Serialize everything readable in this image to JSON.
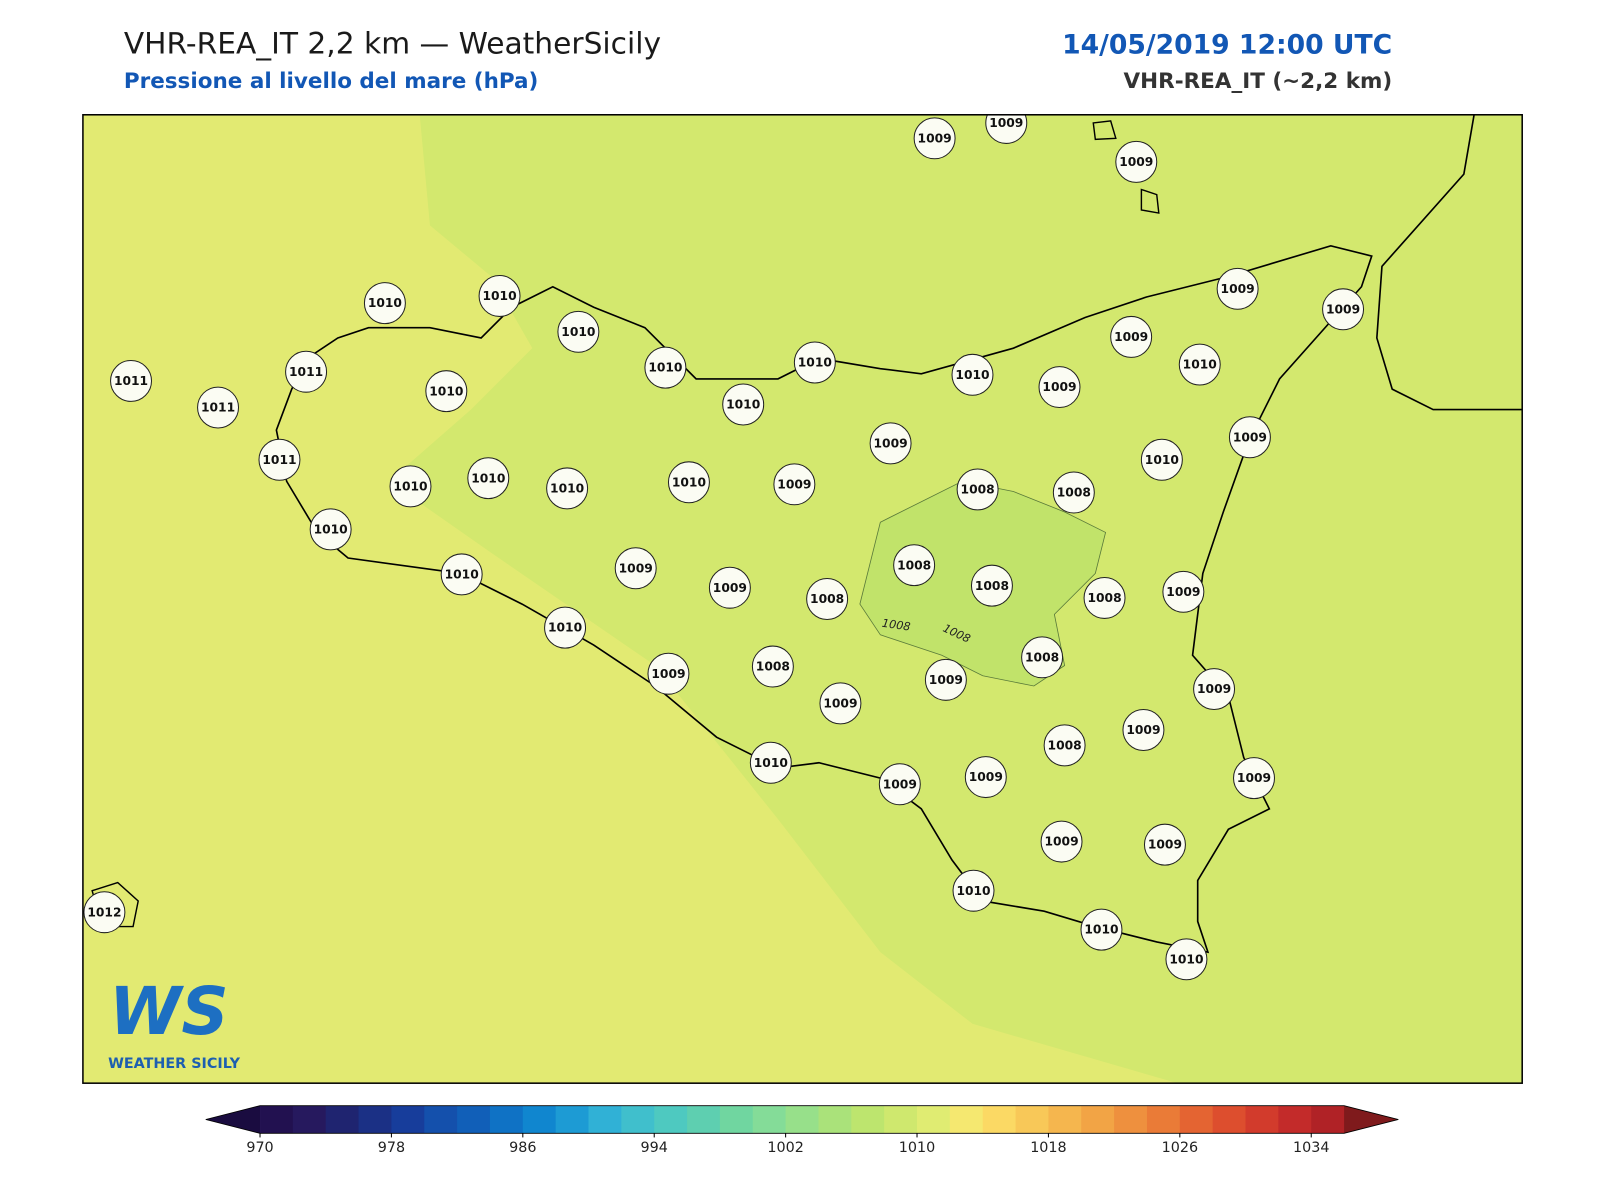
{
  "header": {
    "title": "VHR-REA_IT 2,2 km — WeatherSicily",
    "subtitle": "Pressione al livello del mare (hPa)",
    "datetime": "14/05/2019 12:00 UTC",
    "model": "VHR-REA_IT (~2,2 km)"
  },
  "stations": [
    1009,
    1009,
    1009,
    1010,
    1010,
    1010,
    1010,
    1010,
    1010,
    1009,
    1009,
    1009,
    1010,
    1010,
    1009,
    1011,
    1011,
    1011,
    1010,
    1011,
    1009,
    1009,
    1010,
    1010,
    1010,
    1010,
    1010,
    1009,
    1008,
    1008,
    1010,
    1008,
    1008,
    1008,
    1009,
    1010,
    1009,
    1009,
    1008,
    1010,
    1008,
    1009,
    1008,
    1009,
    1009,
    1009,
    1009,
    1008,
    1010,
    1009,
    1009,
    1009,
    1009,
    1009,
    1010,
    1010,
    1010,
    1012
  ],
  "contour_labels": [
    1008,
    1008
  ],
  "colorbar": {
    "lim": [
      970,
      1036
    ],
    "ticks": [
      970,
      978,
      986,
      994,
      1002,
      1010,
      1018,
      1026,
      1034
    ],
    "colors": [
      "#221150",
      "#26195e",
      "#1f2470",
      "#1b3085",
      "#173d9b",
      "#1450ac",
      "#115fb8",
      "#0f72c5",
      "#1086cf",
      "#1d9bd4",
      "#30b1d6",
      "#40bfcc",
      "#4ec9c0",
      "#5ecfb0",
      "#70d6a0",
      "#84dc98",
      "#97e08a",
      "#aae27a",
      "#bde56e",
      "#cfe86e",
      "#e0ec72",
      "#f5e870",
      "#fbd964",
      "#f8c858",
      "#f5b64e",
      "#f2a445",
      "#ee903e",
      "#ea7b37",
      "#e46432",
      "#dd4e2e",
      "#d23b2c",
      "#c32b2a",
      "#b02226"
    ],
    "under_color": "#1a0c40",
    "over_color": "#7f1a1c"
  },
  "logo": {
    "mark": "WS",
    "text": "WEATHER SICILY"
  }
}
